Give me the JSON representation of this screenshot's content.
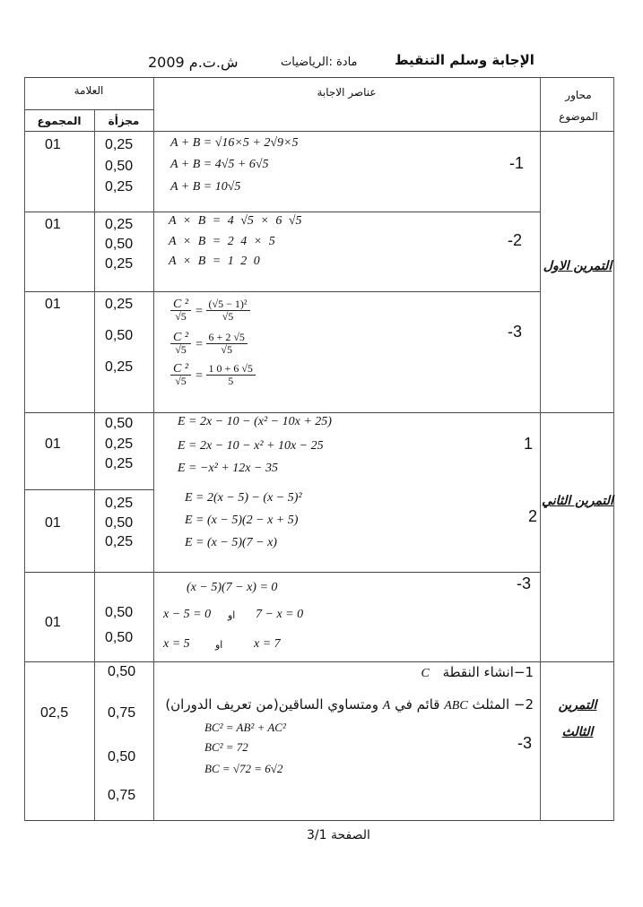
{
  "header": {
    "title": "الإجابة وسلم التنقيط",
    "subject": "مادة :الرياضيات",
    "exam": "ش.ت.م 2009"
  },
  "table_header": {
    "axes": "محاور الموضوع",
    "answer_elements": "عناصر الاجابة",
    "mark": "العلامة",
    "partial": "مجزأة",
    "total": "المجموع"
  },
  "ex1": {
    "label": "التمرين الاول",
    "q1": {
      "num": "-1",
      "total": "01",
      "partials": [
        "0,25",
        "0,50",
        "0,25"
      ],
      "lines": [
        "A + B = √16×5 + 2√9×5",
        "A + B = 4√5 + 6√5",
        "A + B = 10√5"
      ]
    },
    "q2": {
      "num": "-2",
      "total": "01",
      "partials": [
        "0,25",
        "0,50",
        "0,25"
      ],
      "lines": [
        "A × B = 4 √5 × 6 √5",
        "A × B = 2 4 × 5",
        "A × B = 1 2 0"
      ]
    },
    "q3": {
      "num": "-3",
      "total": "01",
      "partials": [
        "0,25",
        "0,50",
        "0,25"
      ],
      "lhs_num": "C ²",
      "lhs_den": "√5",
      "rhs": [
        {
          "num": "(√5 − 1)²",
          "den": "√5"
        },
        {
          "num": "6 + 2 √5",
          "den": "√5"
        },
        {
          "num": "1 0 + 6 √5",
          "den": "5"
        }
      ]
    }
  },
  "ex2": {
    "label": "التمرين الثاني",
    "q1": {
      "num": "1",
      "total": "01",
      "partials": [
        "0,50",
        "0,25",
        "0,25"
      ],
      "lines": [
        "E = 2x − 10 − (x² − 10x + 25)",
        "E = 2x − 10 − x² + 10x − 25",
        "E = −x² + 12x − 35"
      ]
    },
    "q2": {
      "num": "2",
      "total": "01",
      "partials": [
        "0,25",
        "0,50",
        "0,25"
      ],
      "lines": [
        "E = 2(x − 5) − (x − 5)²",
        "E = (x − 5)(2 − x + 5)",
        "E = (x − 5)(7 − x)"
      ]
    },
    "q3": {
      "num": "-3",
      "total": "01",
      "partials": [
        "0,50",
        "0,50"
      ],
      "line1": "(x − 5)(7 − x) = 0",
      "line2a": "x − 5 = 0",
      "or": "او",
      "line2b": "7 − x = 0",
      "line3a": "x = 5",
      "line3b": "x = 7"
    }
  },
  "ex3": {
    "label": "التمرين الثالث",
    "total": "02,5",
    "partials": [
      "0,50",
      "0,75",
      "0,50",
      "0,75"
    ],
    "q1": {
      "text": "1−انشاء النقطة",
      "var": "C"
    },
    "q2": {
      "pre": "2− المثلث",
      "var1": "ABC",
      "mid": "قائم في",
      "var2": "A",
      "post": "ومتساوي الساقين(من تعريف الدوران)"
    },
    "q3": {
      "num": "-3",
      "lines": [
        "BC² = AB² + AC²",
        "BC² = 72",
        "BC = √72 = 6√2"
      ]
    }
  },
  "footer": {
    "page": "الصفحة 3/1"
  }
}
